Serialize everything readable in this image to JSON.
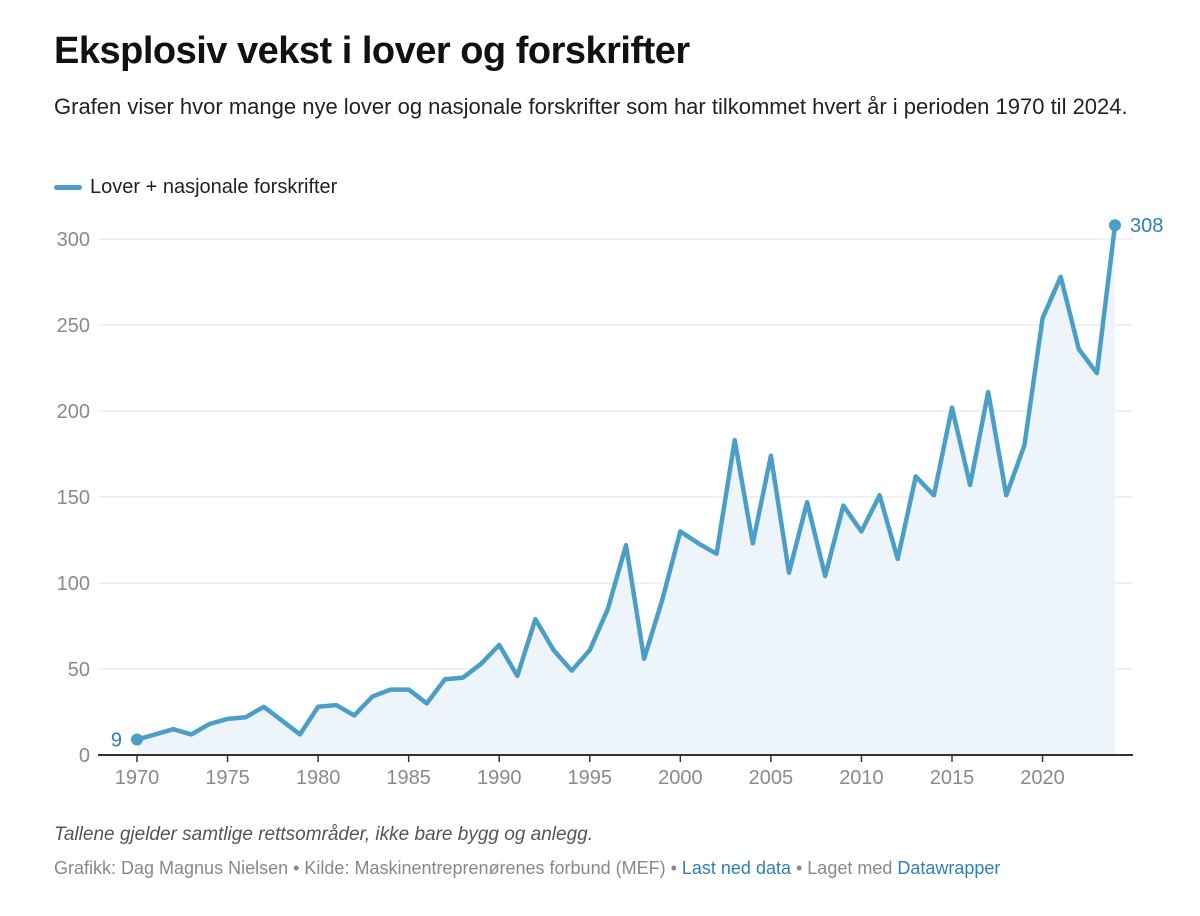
{
  "header": {
    "title": "Eksplosiv vekst i lover og forskrifter",
    "subtitle": "Grafen viser hvor mange nye lover og nasjonale forskrifter som har tilkommet hvert år i perioden 1970 til 2024."
  },
  "colors": {
    "line": "#4a9ec8",
    "area": "#edf5fa",
    "label": "#2d7fb8",
    "grid": "#e2e2e2",
    "axis": "#333333"
  },
  "chart_data": {
    "type": "area",
    "title": "Eksplosiv vekst i lover og forskrifter",
    "xlabel": "",
    "ylabel": "",
    "xlim": [
      1970,
      2024
    ],
    "ylim": [
      0,
      300
    ],
    "grid": true,
    "legend_position": "top-left",
    "y_ticks": [
      0,
      50,
      100,
      150,
      200,
      250,
      300
    ],
    "x_ticks": [
      1970,
      1975,
      1980,
      1985,
      1990,
      1995,
      2000,
      2005,
      2010,
      2015,
      2020
    ],
    "series": [
      {
        "name": "Lover + nasjonale forskrifter",
        "x": [
          1970,
          1971,
          1972,
          1973,
          1974,
          1975,
          1976,
          1977,
          1978,
          1979,
          1980,
          1981,
          1982,
          1983,
          1984,
          1985,
          1986,
          1987,
          1988,
          1989,
          1990,
          1991,
          1992,
          1993,
          1994,
          1995,
          1996,
          1997,
          1998,
          1999,
          2000,
          2001,
          2002,
          2003,
          2004,
          2005,
          2006,
          2007,
          2008,
          2009,
          2010,
          2011,
          2012,
          2013,
          2014,
          2015,
          2016,
          2017,
          2018,
          2019,
          2020,
          2021,
          2022,
          2023,
          2024
        ],
        "values": [
          9,
          12,
          15,
          12,
          18,
          21,
          22,
          28,
          20,
          12,
          28,
          29,
          23,
          34,
          38,
          38,
          30,
          44,
          45,
          53,
          64,
          46,
          79,
          61,
          49,
          61,
          85,
          122,
          56,
          90,
          130,
          123,
          117,
          183,
          123,
          174,
          106,
          147,
          104,
          145,
          130,
          151,
          114,
          162,
          151,
          202,
          157,
          211,
          151,
          180,
          254,
          278,
          236,
          222,
          308
        ]
      }
    ],
    "annotations": [
      {
        "text": "9",
        "x": 1970,
        "y": 9
      },
      {
        "text": "308",
        "x": 2024,
        "y": 308
      }
    ]
  },
  "footer": {
    "note": "Tallene gjelder samtlige rettsområder, ikke bare bygg og anlegg.",
    "credit": "Grafikk: Dag Magnus Nielsen",
    "sep1": " • ",
    "source": "Kilde: Maskinentreprenørenes forbund (MEF)",
    "sep2": " • ",
    "download_link": "Last ned data",
    "sep3": " • ",
    "made_with": "Laget med ",
    "tool_link": "Datawrapper"
  }
}
